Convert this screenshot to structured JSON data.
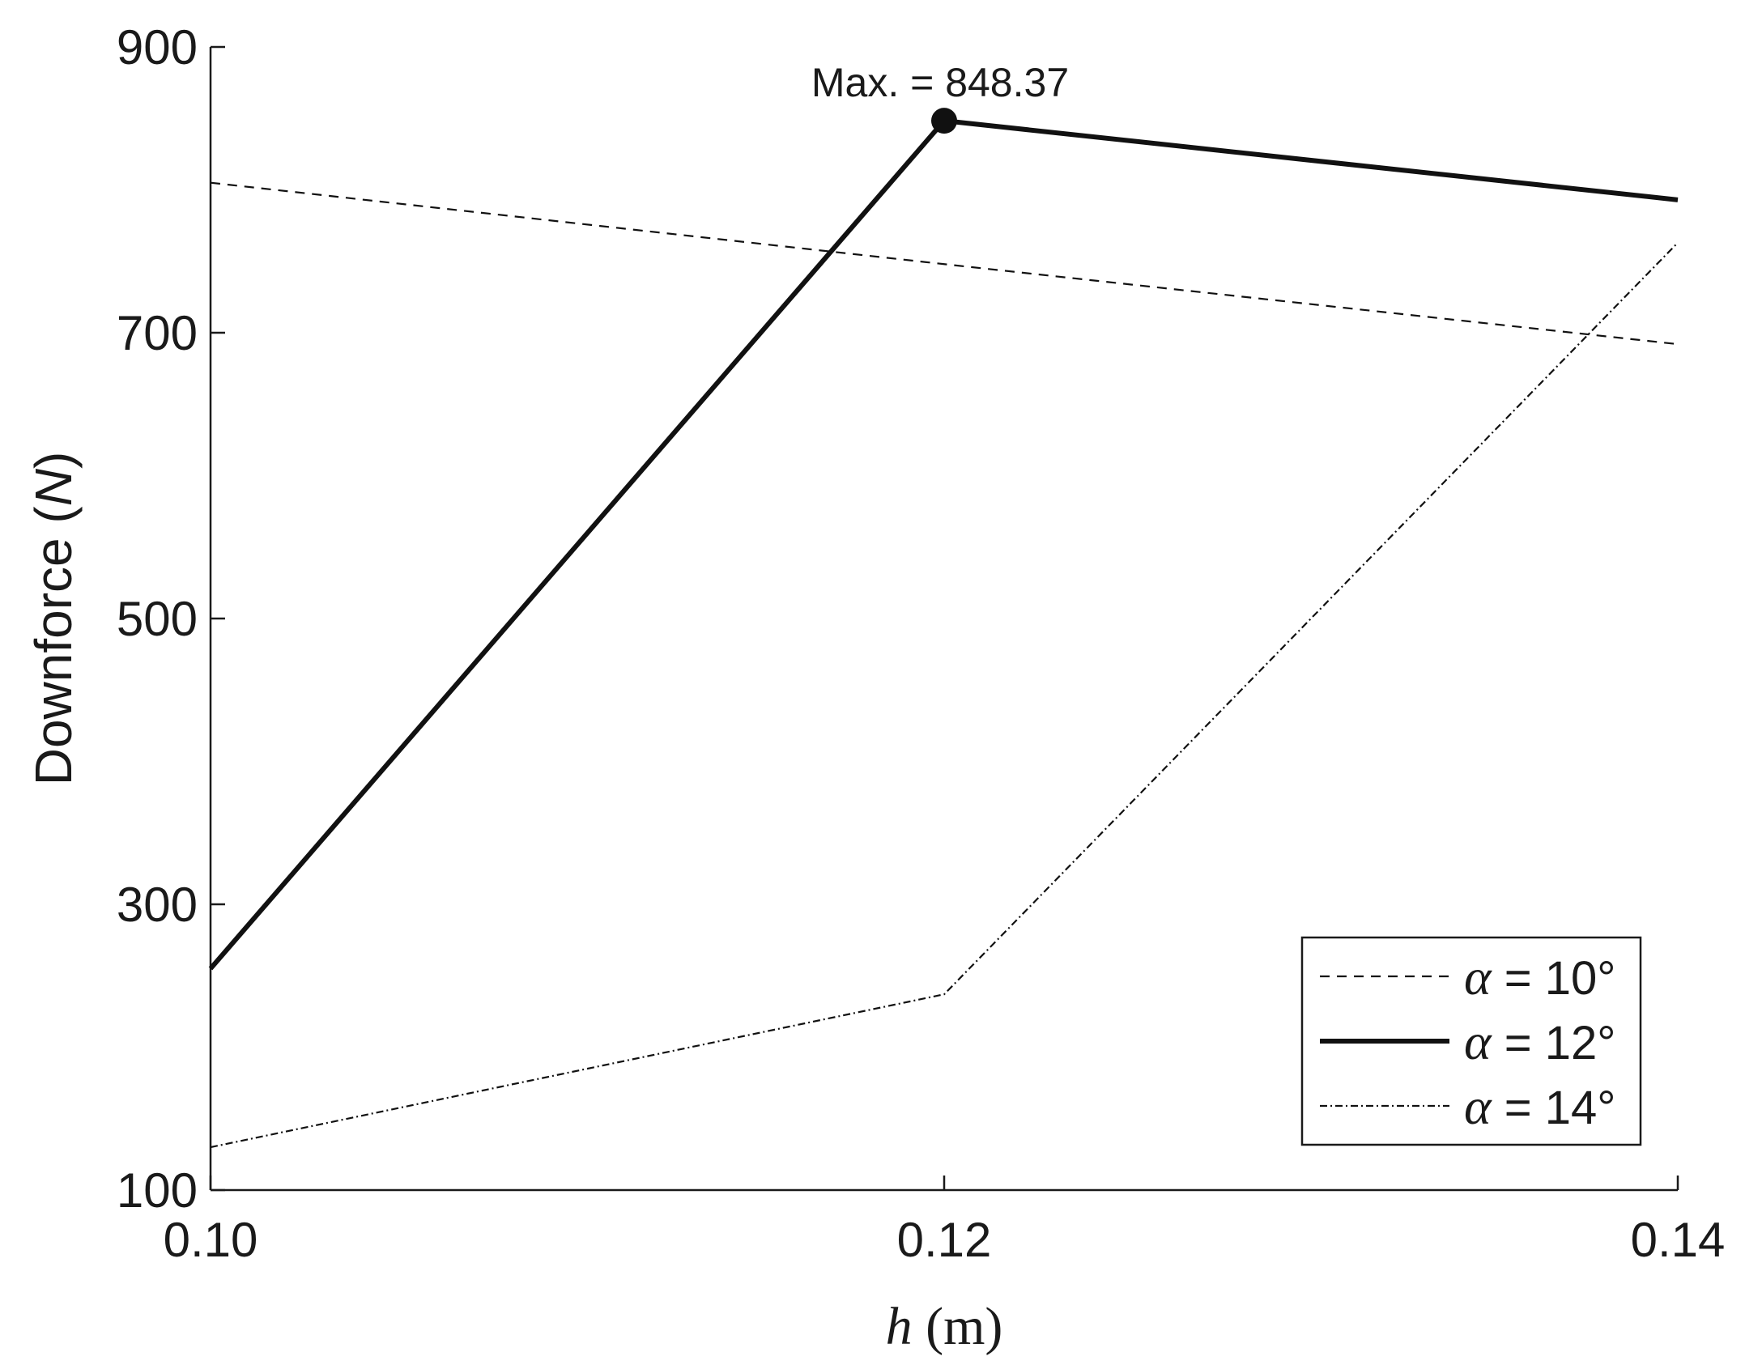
{
  "chart_data": {
    "type": "line",
    "title": "",
    "xlabel_symbol": "h",
    "xlabel_unit": "(m)",
    "ylabel_main": "Downforce (",
    "ylabel_unit": "N",
    "ylabel_close": ")",
    "xlim": [
      0.1,
      0.14
    ],
    "ylim": [
      100,
      900
    ],
    "x": [
      0.1,
      0.12,
      0.14
    ],
    "xticks": [
      0.1,
      0.12,
      0.14
    ],
    "xtick_labels": [
      "0.10",
      "0.12",
      "0.14"
    ],
    "yticks": [
      100,
      300,
      500,
      700,
      900
    ],
    "ytick_labels": [
      "100",
      "300",
      "500",
      "700",
      "900"
    ],
    "grid": false,
    "legend_position": "bottom-right",
    "series": [
      {
        "name_symbol": "α",
        "name_rest": " = 10°",
        "style": "dashed",
        "values": [
          805,
          748,
          692
        ]
      },
      {
        "name_symbol": "α",
        "name_rest": " = 12°",
        "style": "solid-thick",
        "values": [
          255,
          848.37,
          793
        ]
      },
      {
        "name_symbol": "α",
        "name_rest": " = 14°",
        "style": "dashdot",
        "values": [
          130,
          237,
          763
        ]
      }
    ],
    "annotation": {
      "text": "Max. = 848.37",
      "x": 0.12,
      "y": 848.37
    }
  }
}
